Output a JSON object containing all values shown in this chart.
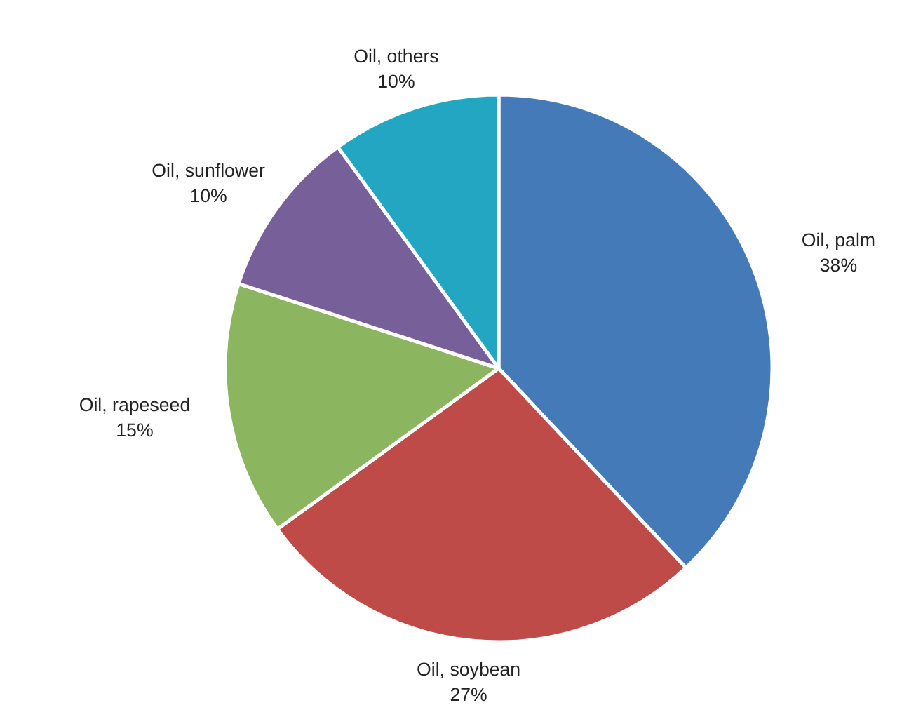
{
  "chart_data": {
    "type": "pie",
    "categories": [
      "Oil, palm",
      "Oil, soybean",
      "Oil, rapeseed",
      "Oil, sunflower",
      "Oil, others"
    ],
    "values": [
      38,
      27,
      15,
      10,
      10
    ],
    "colors": [
      "#457ab9",
      "#be4b48",
      "#8cb55f",
      "#775f9a",
      "#22a6c1"
    ],
    "value_labels": [
      "38%",
      "27%",
      "15%",
      "10%",
      "10%"
    ],
    "legend": false
  }
}
